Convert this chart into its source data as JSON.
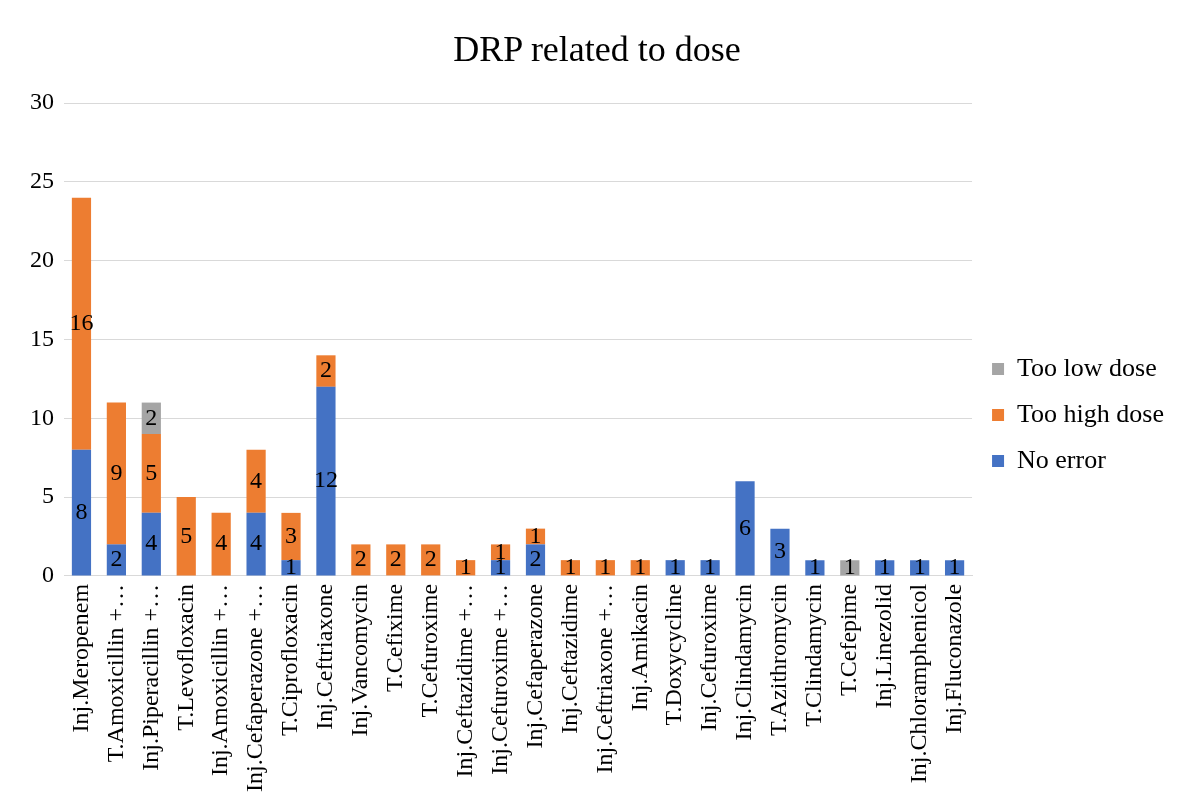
{
  "chart_data": {
    "type": "bar",
    "title": "DRP related to dose",
    "stacked": true,
    "grid": "y",
    "legend": "right",
    "categories": [
      "Inj.Meropenem",
      "T.Amoxicillin +…",
      "Inj.Piperacillin +…",
      "T.Levofloxacin",
      "Inj.Amoxicillin +…",
      "Inj.Cefaperazone +…",
      "T.Ciprofloxacin",
      "Inj.Ceftriaxone",
      "Inj.Vancomycin",
      "T.Cefixime",
      "T.Cefuroxime",
      "Inj.Ceftazidime +…",
      "Inj.Cefuroxime +…",
      "Inj.Cefaperazone",
      "Inj.Ceftazidime",
      "Inj.Ceftriaxone +…",
      "Inj.Amikacin",
      "T.Doxycycline",
      "Inj.Cefuroxime",
      "Inj.Clindamycin",
      "T.Azithromycin",
      "T.Clindamycin",
      "T.Cefepime",
      "Inj.Linezolid",
      "Inj.Chloramphenicol",
      "Inj.Fluconazole"
    ],
    "ylim": [
      0,
      30
    ],
    "yticks": [
      0,
      5,
      10,
      15,
      20,
      25,
      30
    ],
    "series": [
      {
        "name": "No error",
        "color": "#4472c4",
        "values": [
          8,
          2,
          4,
          0,
          0,
          4,
          1,
          12,
          0,
          0,
          0,
          0,
          1,
          2,
          0,
          0,
          0,
          1,
          1,
          6,
          3,
          1,
          0,
          1,
          1,
          1
        ],
        "value_labels": [
          "8",
          "2",
          "4",
          null,
          null,
          "4",
          "1",
          "12",
          null,
          null,
          null,
          null,
          "1",
          "2",
          null,
          null,
          null,
          "1",
          "1",
          "6",
          "3",
          "1",
          null,
          "1",
          "1",
          "1"
        ]
      },
      {
        "name": "Too high dose",
        "color": "#ed7d31",
        "values": [
          16,
          9,
          5,
          5,
          4,
          4,
          3,
          2,
          2,
          2,
          2,
          1,
          1,
          1,
          1,
          1,
          1,
          0,
          0,
          0,
          0,
          0,
          0,
          0,
          0,
          0
        ],
        "value_labels": [
          "16",
          "9",
          "5",
          "5",
          "4",
          "4",
          "3",
          "2",
          "2",
          "2",
          "2",
          "1",
          "1",
          "1",
          "1",
          "1",
          "1",
          null,
          null,
          null,
          null,
          null,
          null,
          null,
          null,
          null
        ]
      },
      {
        "name": "Too low dose",
        "color": "#a5a5a5",
        "values": [
          0,
          0,
          2,
          0,
          0,
          0,
          0,
          0,
          0,
          0,
          0,
          0,
          0,
          0,
          0,
          0,
          0,
          0,
          0,
          0,
          0,
          0,
          1,
          0,
          0,
          0
        ],
        "value_labels": [
          null,
          null,
          "2",
          null,
          null,
          null,
          null,
          null,
          null,
          null,
          null,
          null,
          null,
          null,
          null,
          null,
          null,
          null,
          null,
          null,
          null,
          null,
          "1",
          null,
          null,
          null
        ]
      }
    ]
  }
}
